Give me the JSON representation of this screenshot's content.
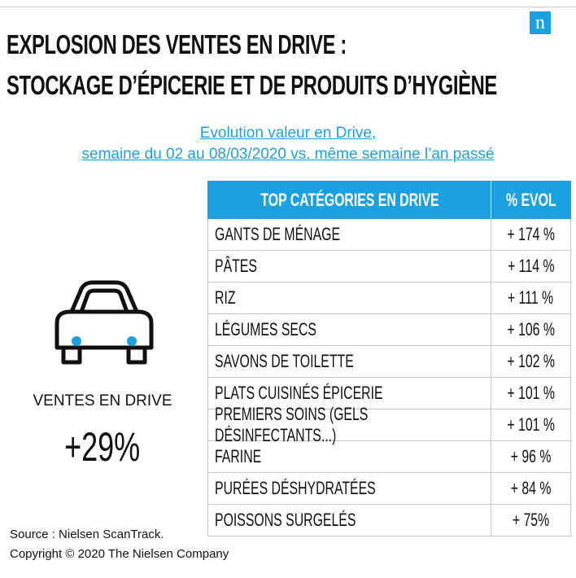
{
  "logo": "n",
  "header": {
    "title_lines": [
      "EXPLOSION DES VENTES EN DRIVE :",
      "STOCKAGE D’ÉPICERIE ET DE PRODUITS D’HYGIÈNE"
    ],
    "subtitle_lines": [
      "Evolution valeur en Drive,",
      "semaine du 02 au 08/03/2020 vs. même semaine l’an passé"
    ]
  },
  "highlight": {
    "label": "VENTES EN DRIVE",
    "value": "+29%"
  },
  "table": {
    "columns": [
      "TOP CATÉGORIES EN DRIVE",
      "% EVOL"
    ],
    "rows": [
      [
        "GANTS DE MÉNAGE",
        "+ 174 %"
      ],
      [
        "PÂTES",
        "+ 114 %"
      ],
      [
        "RIZ",
        "+ 111 %"
      ],
      [
        "LÉGUMES SECS",
        "+ 106 %"
      ],
      [
        "SAVONS DE TOILETTE",
        "+ 102 %"
      ],
      [
        "PLATS CUISINÉS ÉPICERIE",
        "+ 101 %"
      ],
      [
        "PREMIERS SOINS (GELS DÉSINFECTANTS...)",
        "+ 101 %"
      ],
      [
        "FARINE",
        "+ 96 %"
      ],
      [
        "PURÉES DÉSHYDRATÉES",
        "+ 84 %"
      ],
      [
        "POISSONS SURGELÉS",
        "+ 75%"
      ]
    ]
  },
  "footer": {
    "source": "Source : Nielsen ScanTrack.",
    "copyright": "Copyright © 2020 The Nielsen Company"
  }
}
